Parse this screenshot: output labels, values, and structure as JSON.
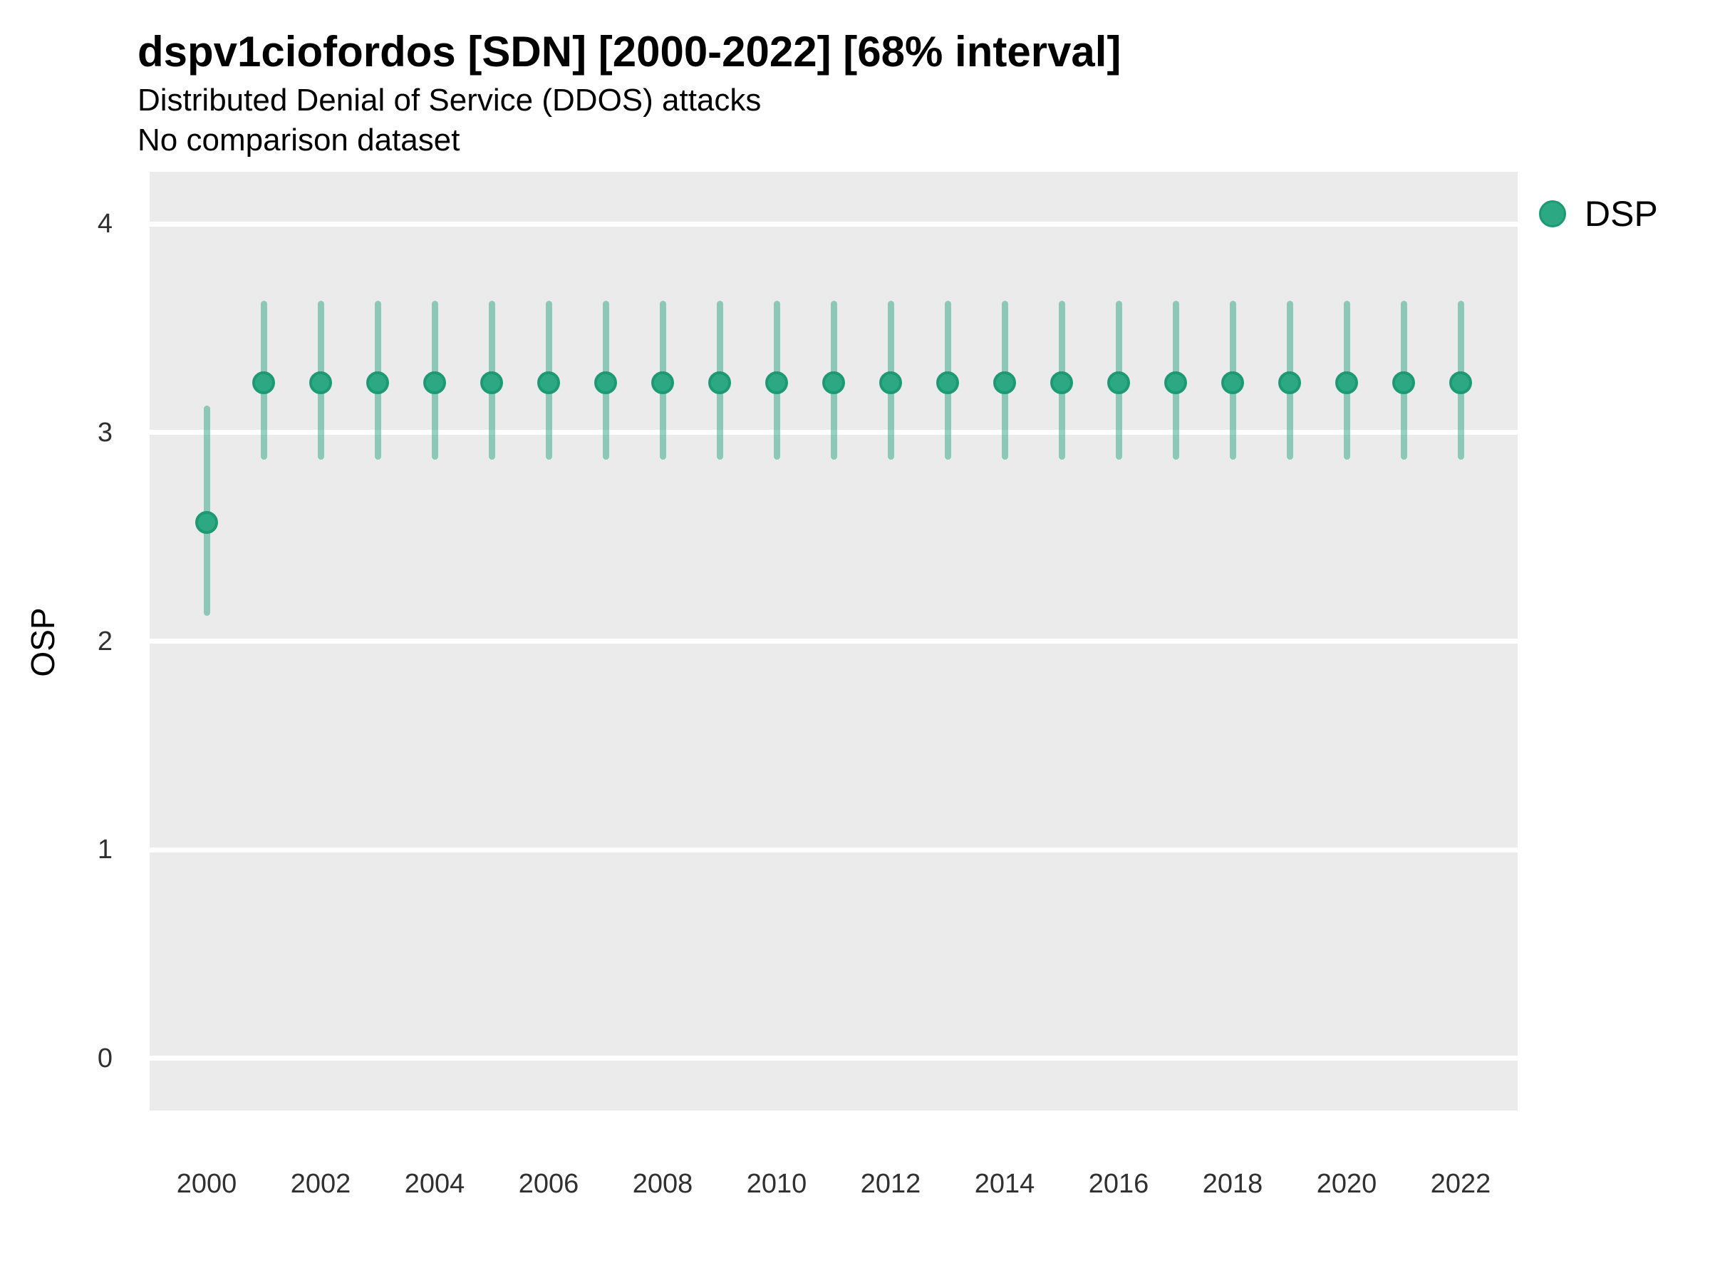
{
  "header": {
    "title": "dspv1ciofordos [SDN] [2000-2022] [68% interval]",
    "subtitle": "Distributed Denial of Service (DDOS) attacks",
    "note": "No comparison dataset"
  },
  "legend": {
    "label": "DSP",
    "position": "right-top"
  },
  "colors": {
    "point_fill": "#2CA882",
    "point_stroke": "#1E9A72",
    "interval": "rgba(44,168,130,0.5)",
    "panel_bg": "#EBEBEB",
    "gridline": "#FFFFFF",
    "tick_text": "#303030",
    "title_text": "#000000"
  },
  "chart_data": {
    "type": "scatter",
    "subtype": "pointrange-errorbar",
    "title": "dspv1ciofordos [SDN] [2000-2022] [68% interval]",
    "subtitle": "Distributed Denial of Service (DDOS) attacks",
    "note": "No comparison dataset",
    "interval_label": "68% interval",
    "xlabel": "",
    "ylabel": "OSP",
    "xlim": [
      1999,
      2023
    ],
    "ylim": [
      -0.25,
      4.25
    ],
    "x_ticks": [
      2000,
      2002,
      2004,
      2006,
      2008,
      2010,
      2012,
      2014,
      2016,
      2018,
      2020,
      2022
    ],
    "y_ticks": [
      0,
      1,
      2,
      3,
      4
    ],
    "grid": "horizontal-major-only",
    "legend_position": "right-top",
    "series": [
      {
        "name": "DSP",
        "points": [
          {
            "x": 2000,
            "y": 2.57,
            "lo": 2.12,
            "hi": 3.13
          },
          {
            "x": 2001,
            "y": 3.24,
            "lo": 2.87,
            "hi": 3.63
          },
          {
            "x": 2002,
            "y": 3.24,
            "lo": 2.87,
            "hi": 3.63
          },
          {
            "x": 2003,
            "y": 3.24,
            "lo": 2.87,
            "hi": 3.63
          },
          {
            "x": 2004,
            "y": 3.24,
            "lo": 2.87,
            "hi": 3.63
          },
          {
            "x": 2005,
            "y": 3.24,
            "lo": 2.87,
            "hi": 3.63
          },
          {
            "x": 2006,
            "y": 3.24,
            "lo": 2.87,
            "hi": 3.63
          },
          {
            "x": 2007,
            "y": 3.24,
            "lo": 2.87,
            "hi": 3.63
          },
          {
            "x": 2008,
            "y": 3.24,
            "lo": 2.87,
            "hi": 3.63
          },
          {
            "x": 2009,
            "y": 3.24,
            "lo": 2.87,
            "hi": 3.63
          },
          {
            "x": 2010,
            "y": 3.24,
            "lo": 2.87,
            "hi": 3.63
          },
          {
            "x": 2011,
            "y": 3.24,
            "lo": 2.87,
            "hi": 3.63
          },
          {
            "x": 2012,
            "y": 3.24,
            "lo": 2.87,
            "hi": 3.63
          },
          {
            "x": 2013,
            "y": 3.24,
            "lo": 2.87,
            "hi": 3.63
          },
          {
            "x": 2014,
            "y": 3.24,
            "lo": 2.87,
            "hi": 3.63
          },
          {
            "x": 2015,
            "y": 3.24,
            "lo": 2.87,
            "hi": 3.63
          },
          {
            "x": 2016,
            "y": 3.24,
            "lo": 2.87,
            "hi": 3.63
          },
          {
            "x": 2017,
            "y": 3.24,
            "lo": 2.87,
            "hi": 3.63
          },
          {
            "x": 2018,
            "y": 3.24,
            "lo": 2.87,
            "hi": 3.63
          },
          {
            "x": 2019,
            "y": 3.24,
            "lo": 2.87,
            "hi": 3.63
          },
          {
            "x": 2020,
            "y": 3.24,
            "lo": 2.87,
            "hi": 3.63
          },
          {
            "x": 2021,
            "y": 3.24,
            "lo": 2.87,
            "hi": 3.63
          },
          {
            "x": 2022,
            "y": 3.24,
            "lo": 2.87,
            "hi": 3.63
          }
        ]
      }
    ]
  }
}
